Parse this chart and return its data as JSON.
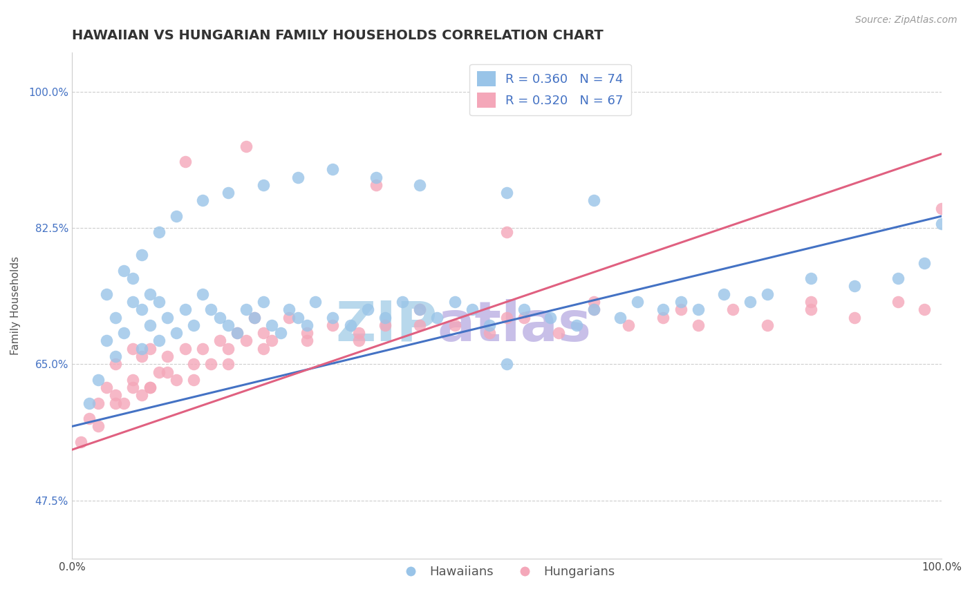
{
  "title": "HAWAIIAN VS HUNGARIAN FAMILY HOUSEHOLDS CORRELATION CHART",
  "source": "Source: ZipAtlas.com",
  "xlabel": "",
  "ylabel": "Family Households",
  "xlim": [
    0.0,
    100.0
  ],
  "ylim": [
    40.0,
    105.0
  ],
  "xticks": [
    0.0,
    100.0
  ],
  "xticklabels": [
    "0.0%",
    "100.0%"
  ],
  "yticks": [
    47.5,
    65.0,
    82.5,
    100.0
  ],
  "yticklabels": [
    "47.5%",
    "65.0%",
    "82.5%",
    "100.0%"
  ],
  "legend_r_hawaiian": "R = 0.360",
  "legend_n_hawaiian": "N = 74",
  "legend_r_hungarian": "R = 0.320",
  "legend_n_hungarian": "N = 67",
  "hawaiian_color": "#99c4e8",
  "hungarian_color": "#f4a7b9",
  "hawaiian_line_color": "#4472c4",
  "hungarian_line_color": "#e06080",
  "background_color": "#ffffff",
  "grid_color": "#cccccc",
  "watermark_zip": "ZIP",
  "watermark_atlas": "atlas",
  "watermark_color_zip": "#b8d8ec",
  "watermark_color_atlas": "#c8bfe8",
  "hawaiians_x": [
    2,
    3,
    4,
    5,
    5,
    6,
    7,
    7,
    8,
    8,
    9,
    9,
    10,
    10,
    11,
    12,
    13,
    14,
    15,
    16,
    17,
    18,
    19,
    20,
    21,
    22,
    23,
    24,
    25,
    26,
    27,
    28,
    30,
    32,
    34,
    36,
    38,
    40,
    42,
    44,
    46,
    48,
    50,
    52,
    55,
    58,
    60,
    63,
    65,
    68,
    70,
    72,
    75,
    78,
    80,
    85,
    90,
    95,
    98,
    100,
    4,
    6,
    8,
    10,
    12,
    15,
    18,
    22,
    26,
    30,
    35,
    40,
    50,
    60
  ],
  "hawaiians_y": [
    60,
    63,
    68,
    66,
    71,
    69,
    73,
    76,
    67,
    72,
    70,
    74,
    68,
    73,
    71,
    69,
    72,
    70,
    74,
    72,
    71,
    70,
    69,
    72,
    71,
    73,
    70,
    69,
    72,
    71,
    70,
    73,
    71,
    70,
    72,
    71,
    73,
    72,
    71,
    73,
    72,
    70,
    65,
    72,
    71,
    70,
    72,
    71,
    73,
    72,
    73,
    72,
    74,
    73,
    74,
    76,
    75,
    76,
    78,
    83,
    74,
    77,
    79,
    82,
    84,
    86,
    87,
    88,
    89,
    90,
    89,
    88,
    87,
    86
  ],
  "hungarians_x": [
    1,
    2,
    3,
    4,
    5,
    5,
    6,
    7,
    7,
    8,
    8,
    9,
    9,
    10,
    11,
    12,
    13,
    14,
    15,
    16,
    17,
    18,
    19,
    20,
    21,
    22,
    23,
    25,
    27,
    30,
    33,
    36,
    40,
    44,
    48,
    52,
    56,
    60,
    64,
    68,
    72,
    76,
    80,
    85,
    90,
    95,
    98,
    100,
    3,
    5,
    7,
    9,
    11,
    14,
    18,
    22,
    27,
    33,
    40,
    50,
    60,
    70,
    85,
    13,
    20,
    35,
    50
  ],
  "hungarians_y": [
    55,
    58,
    60,
    62,
    61,
    65,
    60,
    63,
    67,
    61,
    66,
    62,
    67,
    64,
    66,
    63,
    67,
    65,
    67,
    65,
    68,
    67,
    69,
    68,
    71,
    69,
    68,
    71,
    69,
    70,
    68,
    70,
    72,
    70,
    69,
    71,
    69,
    72,
    70,
    71,
    70,
    72,
    70,
    72,
    71,
    73,
    72,
    85,
    57,
    60,
    62,
    62,
    64,
    63,
    65,
    67,
    68,
    69,
    70,
    71,
    73,
    72,
    73,
    91,
    93,
    88,
    82
  ],
  "title_fontsize": 14,
  "axis_label_fontsize": 11,
  "tick_fontsize": 11,
  "legend_fontsize": 13
}
